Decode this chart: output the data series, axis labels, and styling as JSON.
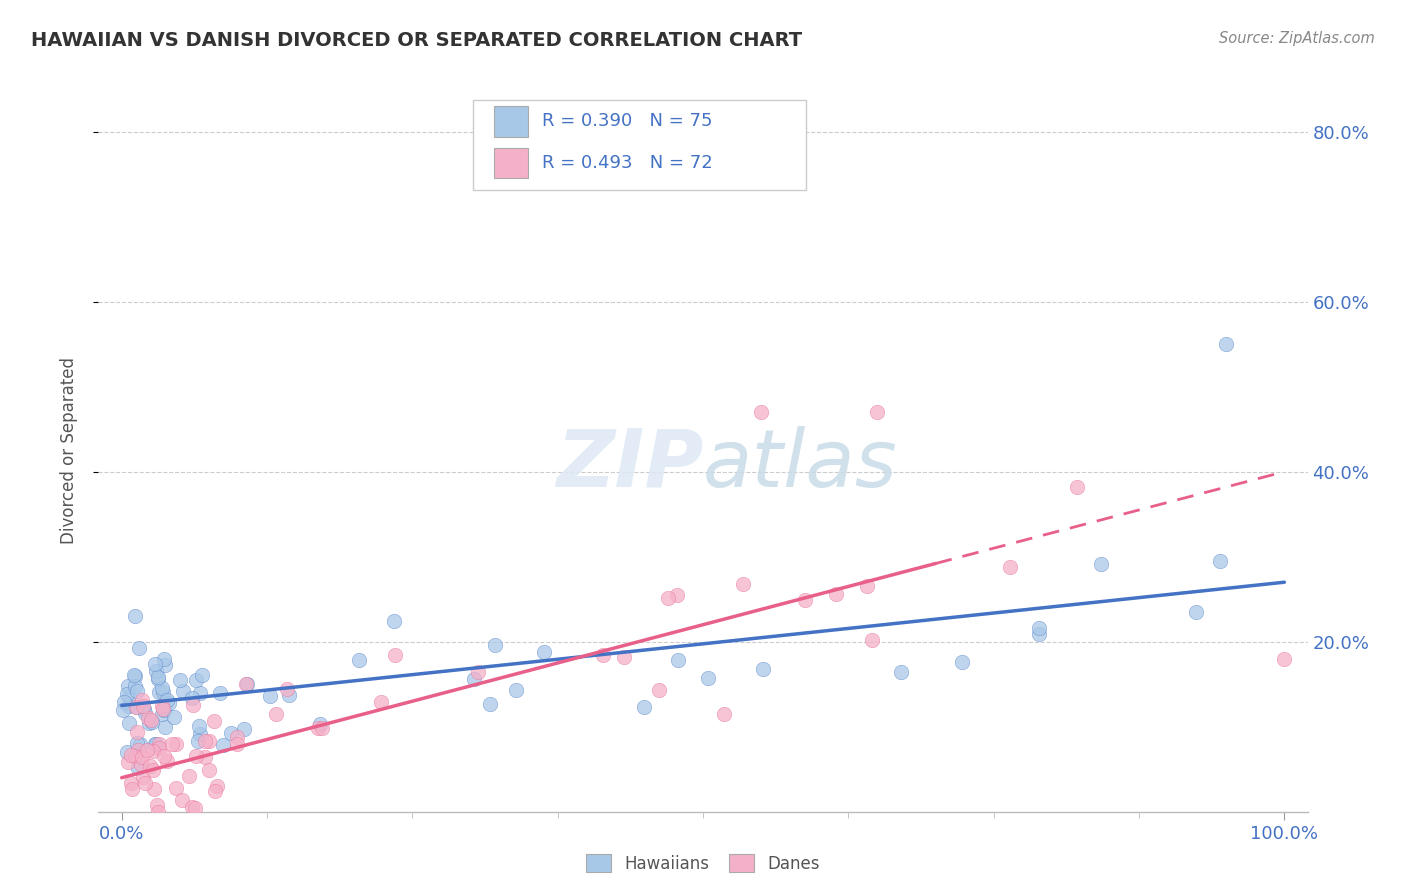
{
  "title": "HAWAIIAN VS DANISH DIVORCED OR SEPARATED CORRELATION CHART",
  "source": "Source: ZipAtlas.com",
  "ylabel": "Divorced or Separated",
  "legend_hawaiians": "Hawaiians",
  "legend_danes": "Danes",
  "hawaiian_R": "R = 0.390",
  "hawaiian_N": "N = 75",
  "danish_R": "R = 0.493",
  "danish_N": "N = 72",
  "color_hawaiian": "#a8c8e8",
  "color_danish": "#f4b0c8",
  "color_hawaiian_line": "#4472c4",
  "color_danish_line": "#e8608a",
  "color_text_blue": "#4472c4",
  "background": "#ffffff",
  "ylim": [
    0,
    85
  ],
  "xlim": [
    -2,
    102
  ],
  "yticks": [
    20,
    40,
    60,
    80
  ],
  "ytick_labels": [
    "20.0%",
    "40.0%",
    "60.0%",
    "80.0%"
  ],
  "hawaiian_line_start_y": 12.5,
  "hawaiian_line_end_y": 27.0,
  "danish_line_start_y": 4.0,
  "danish_line_end_y": 40.0
}
